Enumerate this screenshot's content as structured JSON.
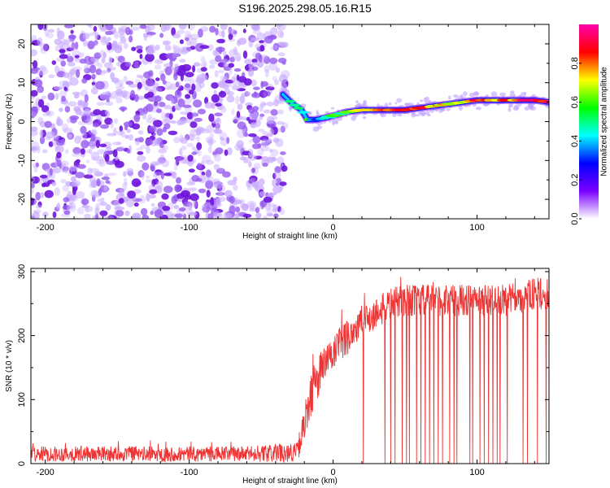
{
  "title": "S196.2025.298.05.16.R15",
  "chart_data": [
    {
      "type": "heatmap",
      "xlabel": "Height of straight line (km)",
      "ylabel": "Frequency (Hz)",
      "xlim": [
        -210,
        150
      ],
      "ylim": [
        -25,
        25
      ],
      "x_ticks": [
        -200,
        -100,
        0,
        100
      ],
      "y_ticks": [
        -20,
        -10,
        0,
        10,
        20
      ],
      "noise_region_x": [
        -210,
        -35
      ],
      "ridge": {
        "x": [
          -35,
          -28,
          -22,
          -18,
          -12,
          -5,
          0,
          10,
          20,
          30,
          40,
          50,
          60,
          70,
          80,
          90,
          100,
          110,
          120,
          130,
          140,
          150
        ],
        "freq": [
          7,
          4.5,
          3,
          0.5,
          0.5,
          1,
          1.5,
          2.5,
          3,
          3,
          3,
          3,
          3.5,
          4,
          4.5,
          5,
          5.5,
          5.5,
          5.5,
          5.5,
          5.5,
          5
        ],
        "amplitude": [
          0.5,
          0.6,
          0.35,
          0.5,
          0.4,
          0.45,
          0.55,
          0.6,
          0.7,
          0.75,
          0.85,
          0.85,
          0.8,
          0.75,
          0.7,
          0.75,
          0.8,
          0.75,
          0.8,
          0.85,
          0.9,
          0.85
        ]
      },
      "colorbar": {
        "label": "Normalized spectral amplitude",
        "range": [
          0,
          1
        ],
        "ticks": [
          0.0,
          0.2,
          0.4,
          0.6,
          0.8
        ],
        "tick_labels": [
          "0.0",
          "0.2",
          "0.4",
          "0.6",
          "0.8"
        ],
        "colors": [
          "#ffffff",
          "#7a00ff",
          "#0000ff",
          "#00ffff",
          "#00ff00",
          "#ffff00",
          "#ff0000",
          "#ff00aa"
        ]
      }
    },
    {
      "type": "line",
      "xlabel": "Height of straight line (km)",
      "ylabel": "SNR (10 * v/v)",
      "xlim": [
        -210,
        150
      ],
      "ylim": [
        0,
        305
      ],
      "x_ticks": [
        -200,
        -100,
        0,
        100
      ],
      "y_ticks": [
        0,
        100,
        200,
        300
      ],
      "color": "#ee3333",
      "envelope": {
        "x": [
          -210,
          -60,
          -40,
          -25,
          -20,
          -15,
          -10,
          0,
          10,
          20,
          30,
          40,
          50,
          60,
          80,
          100,
          120,
          140,
          150
        ],
        "mean": [
          15,
          15,
          16,
          18,
          60,
          110,
          140,
          170,
          200,
          220,
          235,
          250,
          255,
          255,
          255,
          255,
          255,
          265,
          265
        ],
        "spread": [
          12,
          12,
          14,
          15,
          30,
          35,
          35,
          30,
          30,
          28,
          25,
          25,
          25,
          25,
          25,
          25,
          25,
          25,
          25
        ]
      },
      "dropouts_x": [
        21,
        36,
        40,
        43,
        48,
        51,
        53,
        58,
        61,
        64,
        67,
        70,
        73,
        76,
        81,
        84,
        86,
        95,
        97,
        102,
        105,
        108,
        111,
        114,
        116,
        121,
        132,
        135,
        142,
        148
      ]
    }
  ]
}
